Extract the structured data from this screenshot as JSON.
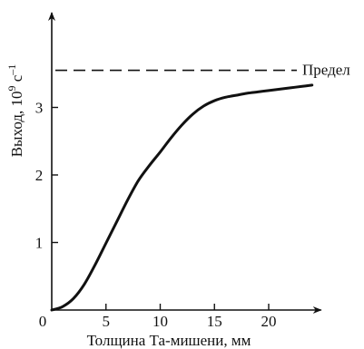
{
  "chart_data": {
    "type": "line",
    "title": "",
    "xlabel": "Толщина Та-мишени, мм",
    "ylabel_prefix": "Выход, 10",
    "ylabel_exp": "9",
    "ylabel_unit": " с",
    "ylabel_unit_exp": "–1",
    "xlim": [
      0,
      25
    ],
    "ylim": [
      0,
      4.4
    ],
    "x_ticks": [
      0,
      5,
      10,
      15,
      20
    ],
    "x_tick_labels": [
      "0",
      "5",
      "10",
      "15",
      "20"
    ],
    "y_ticks": [
      1,
      2,
      3
    ],
    "y_tick_labels": [
      "1",
      "2",
      "3"
    ],
    "grid": false,
    "series": [
      {
        "x": [
          0,
          1,
          2,
          3,
          4,
          5,
          6,
          7,
          8,
          9,
          10,
          11,
          12,
          13,
          14,
          15,
          16,
          17,
          18,
          19,
          20,
          21,
          22,
          23,
          24
        ],
        "values": [
          0,
          0.05,
          0.17,
          0.38,
          0.67,
          0.99,
          1.31,
          1.63,
          1.92,
          2.14,
          2.34,
          2.55,
          2.74,
          2.9,
          3.02,
          3.1,
          3.15,
          3.18,
          3.21,
          3.23,
          3.25,
          3.27,
          3.29,
          3.31,
          3.33
        ]
      }
    ],
    "limit": {
      "value": 3.55,
      "label": "Предел"
    }
  }
}
